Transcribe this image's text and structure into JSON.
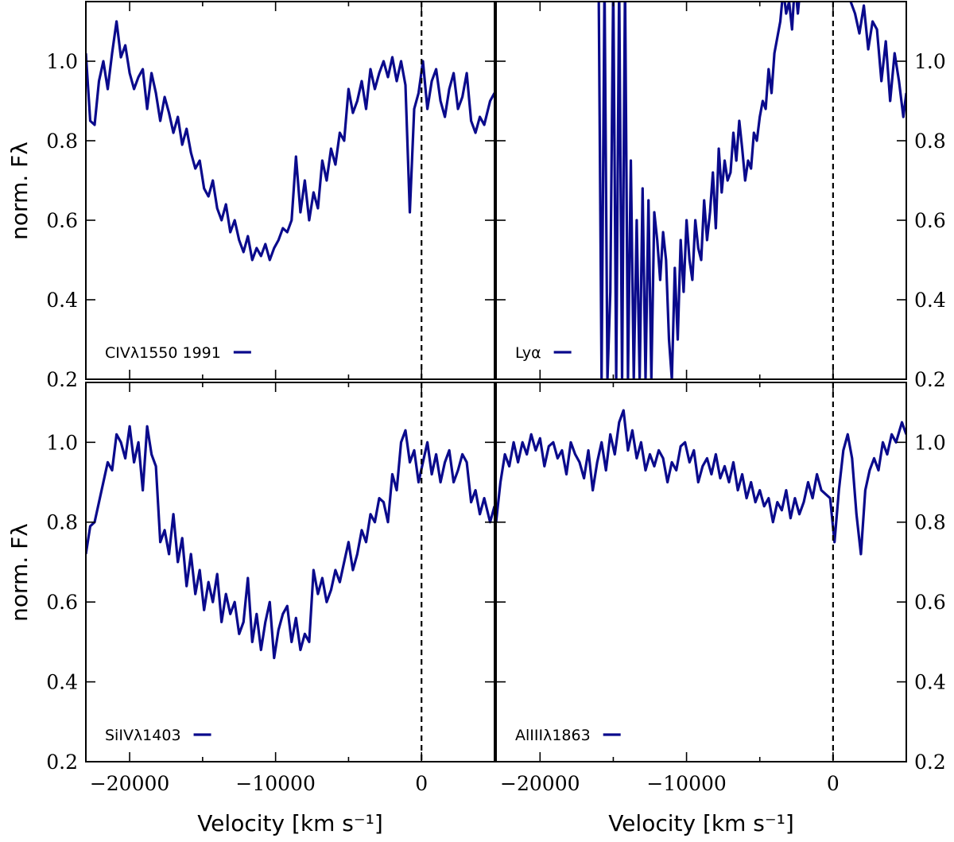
{
  "chart_data": {
    "type": "line",
    "layout": "2x2 grid, shared axes",
    "xlabel": "Velocity [km s⁻¹]",
    "ylabel": "norm. Fλ",
    "xlim": [
      -23000,
      5000
    ],
    "ylim": [
      0.2,
      1.15
    ],
    "xticks": [
      -20000,
      -10000,
      0
    ],
    "xtick_labels": [
      "−20000",
      "−10000",
      "0"
    ],
    "yticks": [
      0.2,
      0.4,
      0.6,
      0.8,
      1.0
    ],
    "ytick_labels": [
      "0.2",
      "0.4",
      "0.6",
      "0.8",
      "1.0"
    ],
    "reference_line": {
      "x": 0,
      "style": "dashed",
      "color": "#000000"
    },
    "line_color": "#0a0a8c",
    "legend_placement": "lower-left",
    "grid": false,
    "panels": [
      {
        "id": "civ",
        "legend": "CIVλ1550 1991",
        "x": [
          -23000,
          -22700,
          -22400,
          -22100,
          -21800,
          -21500,
          -21200,
          -20900,
          -20600,
          -20300,
          -20000,
          -19700,
          -19400,
          -19100,
          -18800,
          -18500,
          -18200,
          -17900,
          -17600,
          -17300,
          -17000,
          -16700,
          -16400,
          -16100,
          -15800,
          -15500,
          -15200,
          -14900,
          -14600,
          -14300,
          -14000,
          -13700,
          -13400,
          -13100,
          -12800,
          -12500,
          -12200,
          -11900,
          -11600,
          -11300,
          -11000,
          -10700,
          -10400,
          -10100,
          -9800,
          -9500,
          -9200,
          -8900,
          -8600,
          -8300,
          -8000,
          -7700,
          -7400,
          -7100,
          -6800,
          -6500,
          -6200,
          -5900,
          -5600,
          -5300,
          -5000,
          -4700,
          -4400,
          -4100,
          -3800,
          -3500,
          -3200,
          -2900,
          -2600,
          -2300,
          -2000,
          -1700,
          -1400,
          -1100,
          -800,
          -500,
          -200,
          100,
          400,
          700,
          1000,
          1300,
          1600,
          1900,
          2200,
          2500,
          2800,
          3100,
          3400,
          3700,
          4000,
          4300,
          4700,
          5000
        ],
        "y": [
          1.02,
          0.85,
          0.84,
          0.95,
          1.0,
          0.93,
          1.02,
          1.1,
          1.01,
          1.04,
          0.97,
          0.93,
          0.96,
          0.98,
          0.88,
          0.97,
          0.92,
          0.85,
          0.91,
          0.87,
          0.82,
          0.86,
          0.79,
          0.83,
          0.77,
          0.73,
          0.75,
          0.68,
          0.66,
          0.7,
          0.63,
          0.6,
          0.64,
          0.57,
          0.6,
          0.55,
          0.52,
          0.56,
          0.5,
          0.53,
          0.51,
          0.54,
          0.5,
          0.53,
          0.55,
          0.58,
          0.57,
          0.6,
          0.76,
          0.62,
          0.7,
          0.6,
          0.67,
          0.63,
          0.75,
          0.7,
          0.78,
          0.74,
          0.82,
          0.8,
          0.93,
          0.87,
          0.9,
          0.95,
          0.88,
          0.98,
          0.93,
          0.97,
          1.0,
          0.96,
          1.01,
          0.95,
          1.0,
          0.94,
          0.62,
          0.88,
          0.92,
          1.0,
          0.88,
          0.95,
          0.98,
          0.9,
          0.86,
          0.93,
          0.97,
          0.88,
          0.91,
          0.97,
          0.85,
          0.82,
          0.86,
          0.84,
          0.9,
          0.92
        ]
      },
      {
        "id": "lya",
        "legend": "Lyα",
        "x": [
          -16000,
          -15800,
          -15600,
          -15400,
          -15200,
          -15000,
          -14800,
          -14600,
          -14400,
          -14200,
          -14000,
          -13800,
          -13600,
          -13400,
          -13200,
          -13000,
          -12800,
          -12600,
          -12400,
          -12200,
          -12000,
          -11800,
          -11600,
          -11400,
          -11200,
          -11000,
          -10800,
          -10600,
          -10400,
          -10200,
          -10000,
          -9800,
          -9600,
          -9400,
          -9200,
          -9000,
          -8800,
          -8600,
          -8400,
          -8200,
          -8000,
          -7800,
          -7600,
          -7400,
          -7200,
          -7000,
          -6800,
          -6600,
          -6400,
          -6200,
          -6000,
          -5800,
          -5600,
          -5400,
          -5200,
          -5000,
          -4800,
          -4600,
          -4400,
          -4200,
          -4000,
          -3800,
          -3600,
          -3400,
          -3200,
          -3000,
          -2800,
          -2600,
          -2400,
          -2200,
          -2000,
          -1800,
          -1600,
          1200,
          1500,
          1800,
          2100,
          2400,
          2700,
          3000,
          3300,
          3600,
          3900,
          4200,
          4500,
          4800,
          5000
        ],
        "y": [
          1.2,
          0.2,
          1.2,
          0.2,
          0.42,
          1.2,
          0.2,
          1.2,
          0.2,
          1.2,
          0.2,
          0.75,
          0.2,
          0.6,
          0.2,
          0.68,
          0.2,
          0.65,
          0.2,
          0.62,
          0.55,
          0.45,
          0.57,
          0.5,
          0.3,
          0.2,
          0.48,
          0.3,
          0.55,
          0.42,
          0.6,
          0.5,
          0.45,
          0.6,
          0.53,
          0.5,
          0.65,
          0.55,
          0.62,
          0.72,
          0.58,
          0.78,
          0.67,
          0.75,
          0.7,
          0.72,
          0.82,
          0.75,
          0.85,
          0.78,
          0.7,
          0.75,
          0.73,
          0.82,
          0.8,
          0.86,
          0.9,
          0.88,
          0.98,
          0.92,
          1.02,
          1.06,
          1.1,
          1.18,
          1.12,
          1.15,
          1.08,
          1.2,
          1.12,
          1.2,
          1.18,
          1.25,
          1.2,
          1.15,
          1.12,
          1.07,
          1.14,
          1.03,
          1.1,
          1.08,
          0.95,
          1.05,
          0.9,
          1.02,
          0.95,
          0.86,
          0.92
        ]
      },
      {
        "id": "siiv",
        "legend": "SiIVλ1403",
        "x": [
          -23000,
          -22700,
          -22400,
          -22100,
          -21800,
          -21500,
          -21200,
          -20900,
          -20600,
          -20300,
          -20000,
          -19700,
          -19400,
          -19100,
          -18800,
          -18500,
          -18200,
          -17900,
          -17600,
          -17300,
          -17000,
          -16700,
          -16400,
          -16100,
          -15800,
          -15500,
          -15200,
          -14900,
          -14600,
          -14300,
          -14000,
          -13700,
          -13400,
          -13100,
          -12800,
          -12500,
          -12200,
          -11900,
          -11600,
          -11300,
          -11000,
          -10700,
          -10400,
          -10100,
          -9800,
          -9500,
          -9200,
          -8900,
          -8600,
          -8300,
          -8000,
          -7700,
          -7400,
          -7100,
          -6800,
          -6500,
          -6200,
          -5900,
          -5600,
          -5300,
          -5000,
          -4700,
          -4400,
          -4100,
          -3800,
          -3500,
          -3200,
          -2900,
          -2600,
          -2300,
          -2000,
          -1700,
          -1400,
          -1100,
          -800,
          -500,
          -200,
          100,
          400,
          700,
          1000,
          1300,
          1600,
          1900,
          2200,
          2500,
          2800,
          3100,
          3400,
          3700,
          4000,
          4300,
          4700,
          5000
        ],
        "y": [
          0.72,
          0.79,
          0.8,
          0.85,
          0.9,
          0.95,
          0.93,
          1.02,
          1.0,
          0.96,
          1.04,
          0.95,
          1.0,
          0.88,
          1.04,
          0.97,
          0.94,
          0.75,
          0.78,
          0.72,
          0.82,
          0.7,
          0.76,
          0.64,
          0.72,
          0.62,
          0.68,
          0.58,
          0.65,
          0.6,
          0.67,
          0.55,
          0.62,
          0.57,
          0.6,
          0.52,
          0.55,
          0.66,
          0.5,
          0.57,
          0.48,
          0.55,
          0.6,
          0.46,
          0.53,
          0.57,
          0.59,
          0.5,
          0.56,
          0.48,
          0.52,
          0.5,
          0.68,
          0.62,
          0.66,
          0.6,
          0.63,
          0.68,
          0.65,
          0.7,
          0.75,
          0.68,
          0.72,
          0.78,
          0.75,
          0.82,
          0.8,
          0.86,
          0.85,
          0.8,
          0.92,
          0.88,
          1.0,
          1.03,
          0.95,
          0.98,
          0.9,
          0.95,
          1.0,
          0.92,
          0.97,
          0.9,
          0.95,
          0.98,
          0.9,
          0.93,
          0.97,
          0.95,
          0.85,
          0.88,
          0.82,
          0.86,
          0.8,
          0.84
        ]
      },
      {
        "id": "aliii",
        "legend": "AlIIIλ1863",
        "x": [
          -23000,
          -22700,
          -22400,
          -22100,
          -21800,
          -21500,
          -21200,
          -20900,
          -20600,
          -20300,
          -20000,
          -19700,
          -19400,
          -19100,
          -18800,
          -18500,
          -18200,
          -17900,
          -17600,
          -17300,
          -17000,
          -16700,
          -16400,
          -16100,
          -15800,
          -15500,
          -15200,
          -14900,
          -14600,
          -14300,
          -14000,
          -13700,
          -13400,
          -13100,
          -12800,
          -12500,
          -12200,
          -11900,
          -11600,
          -11300,
          -11000,
          -10700,
          -10400,
          -10100,
          -9800,
          -9500,
          -9200,
          -8900,
          -8600,
          -8300,
          -8000,
          -7700,
          -7400,
          -7100,
          -6800,
          -6500,
          -6200,
          -5900,
          -5600,
          -5300,
          -5000,
          -4700,
          -4400,
          -4100,
          -3800,
          -3500,
          -3200,
          -2900,
          -2600,
          -2300,
          -2000,
          -1700,
          -1400,
          -1100,
          -800,
          -500,
          -200,
          100,
          400,
          700,
          1000,
          1300,
          1600,
          1900,
          2200,
          2500,
          2800,
          3100,
          3400,
          3700,
          4000,
          4300,
          4700,
          5000
        ],
        "y": [
          0.8,
          0.9,
          0.97,
          0.94,
          1.0,
          0.95,
          1.0,
          0.97,
          1.02,
          0.98,
          1.01,
          0.94,
          0.99,
          1.0,
          0.96,
          0.98,
          0.92,
          1.0,
          0.97,
          0.95,
          0.91,
          0.98,
          0.88,
          0.95,
          1.0,
          0.93,
          1.02,
          0.97,
          1.05,
          1.08,
          0.98,
          1.03,
          0.96,
          1.0,
          0.93,
          0.97,
          0.94,
          0.98,
          0.96,
          0.9,
          0.95,
          0.93,
          0.99,
          1.0,
          0.95,
          0.98,
          0.9,
          0.94,
          0.96,
          0.92,
          0.97,
          0.91,
          0.94,
          0.9,
          0.95,
          0.88,
          0.92,
          0.86,
          0.9,
          0.85,
          0.88,
          0.84,
          0.86,
          0.8,
          0.85,
          0.83,
          0.88,
          0.81,
          0.86,
          0.82,
          0.85,
          0.9,
          0.86,
          0.92,
          0.88,
          0.87,
          0.86,
          0.75,
          0.88,
          0.98,
          1.02,
          0.96,
          0.82,
          0.72,
          0.88,
          0.93,
          0.96,
          0.93,
          1.0,
          0.97,
          1.02,
          1.0,
          1.05,
          1.02
        ]
      }
    ]
  }
}
